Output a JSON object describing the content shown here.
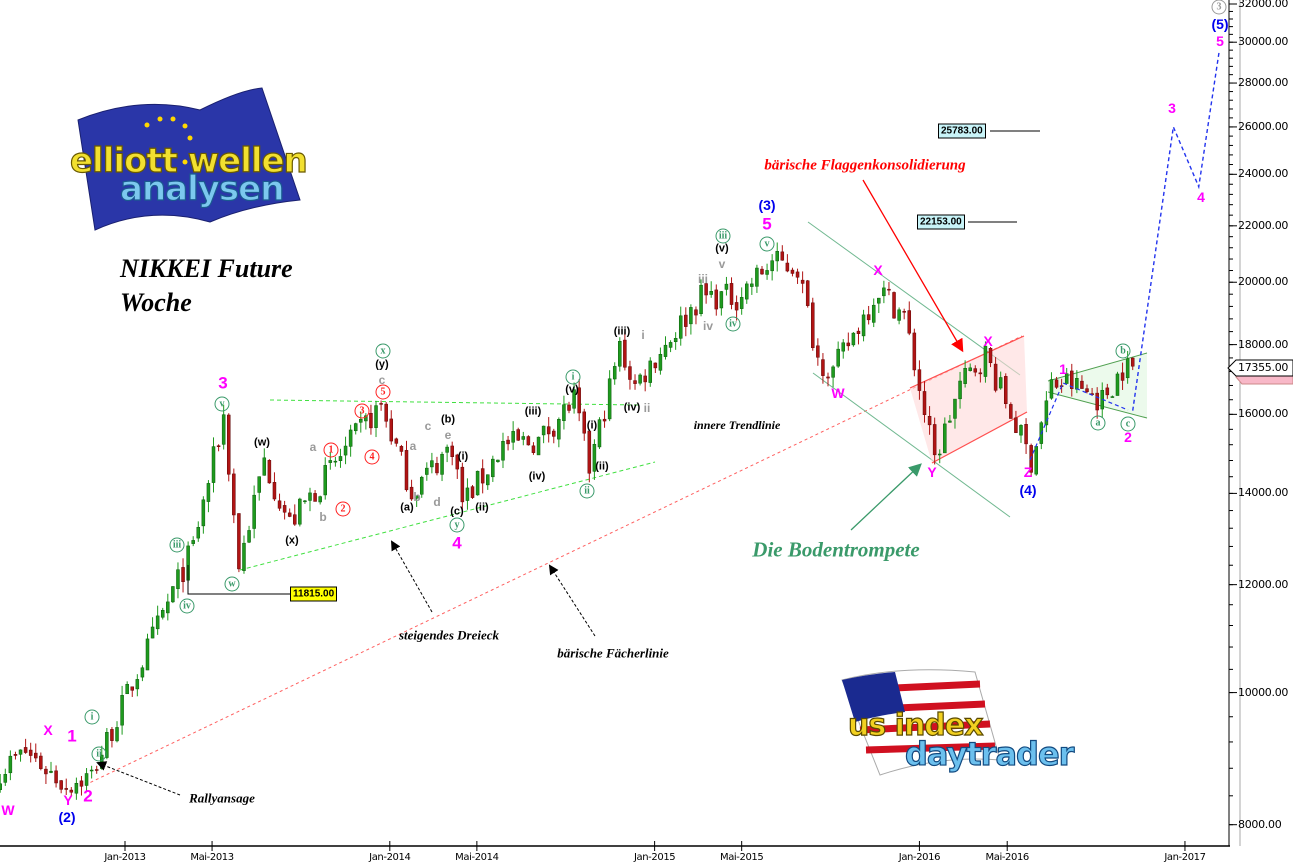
{
  "chart_data": {
    "type": "candlestick",
    "title": "NIKKEI Future",
    "subtitle": "Woche",
    "y_scale": "log",
    "ylim": [
      8000,
      32000
    ],
    "y_ticks": [
      8000,
      10000,
      12000,
      14000,
      16000,
      18000,
      20000,
      22000,
      24000,
      26000,
      28000,
      30000,
      32000
    ],
    "y_tick_labels": [
      "8000.00",
      "10000.00",
      "12000.00",
      "14000.00",
      "16000.00",
      "18000.00",
      "20000.00",
      "22000.00",
      "24000.00",
      "26000.00",
      "28000.00",
      "30000.00",
      "32000.00"
    ],
    "x_tick_labels": [
      {
        "date": "2013-01-01",
        "label": "Jan-2013"
      },
      {
        "date": "2013-05-01",
        "label": "Mai-2013"
      },
      {
        "date": "2014-01-01",
        "label": "Jan-2014"
      },
      {
        "date": "2014-05-01",
        "label": "Mai-2014"
      },
      {
        "date": "2015-01-01",
        "label": "Jan-2015"
      },
      {
        "date": "2015-05-01",
        "label": "Mai-2015"
      },
      {
        "date": "2016-01-01",
        "label": "Jan-2016"
      },
      {
        "date": "2016-05-01",
        "label": "Mai-2016"
      },
      {
        "date": "2017-01-01",
        "label": "Jan-2017"
      }
    ],
    "grid": false,
    "up_color": "#1e9a1e",
    "down_color": "#b01414",
    "weekly_pivots": [
      [
        "2012-07-13",
        8770
      ],
      [
        "2012-08-17",
        9050
      ],
      [
        "2012-10-12",
        8550
      ],
      [
        "2012-11-16",
        8700
      ],
      [
        "2013-04-05",
        12800
      ],
      [
        "2013-05-17",
        15950
      ],
      [
        "2013-06-07",
        12400
      ],
      [
        "2013-07-12",
        14800
      ],
      [
        "2013-08-16",
        13300
      ],
      [
        "2013-11-22",
        15600
      ],
      [
        "2013-12-20",
        16250
      ],
      [
        "2014-01-31",
        14050
      ],
      [
        "2014-03-28",
        15200
      ],
      [
        "2014-04-11",
        13800
      ],
      [
        "2014-05-09",
        14400
      ],
      [
        "2014-06-06",
        15200
      ],
      [
        "2014-07-25",
        15300
      ],
      [
        "2014-09-12",
        16400
      ],
      [
        "2014-10-03",
        14600
      ],
      [
        "2014-11-14",
        17900
      ],
      [
        "2014-12-05",
        16800
      ],
      [
        "2015-03-06",
        19550
      ],
      [
        "2015-04-24",
        19500
      ],
      [
        "2015-06-12",
        20700
      ],
      [
        "2015-07-17",
        20500
      ],
      [
        "2015-08-14",
        17600
      ],
      [
        "2015-09-04",
        17200
      ],
      [
        "2015-11-06",
        19800
      ],
      [
        "2015-12-11",
        18900
      ],
      [
        "2016-01-22",
        14800
      ],
      [
        "2016-02-26",
        16800
      ],
      [
        "2016-04-01",
        17700
      ],
      [
        "2016-06-03",
        14800
      ],
      [
        "2016-07-01",
        16800
      ],
      [
        "2016-07-22",
        16900
      ],
      [
        "2016-09-09",
        16400
      ],
      [
        "2016-10-07",
        17300
      ],
      [
        "2016-10-21",
        17355
      ]
    ],
    "forecast": [
      [
        "2016-10-21",
        16100
      ],
      [
        "2016-12-16",
        26000
      ],
      [
        "2017-01-20",
        23500
      ],
      [
        "2017-02-17",
        29500
      ]
    ],
    "last_price_label": "17355.00",
    "price_levels": [
      {
        "label": "11815.00",
        "value": 11815,
        "color": "#ffff00"
      },
      {
        "label": "25783.00",
        "value": 25783,
        "color": "#c8f4f8"
      },
      {
        "label": "22153.00",
        "value": 22153,
        "color": "#c8f4f8"
      }
    ],
    "annotations": {
      "text": {
        "flag": "bärische Flaggenkonsolidierung",
        "inner": "innere Trendlinie",
        "trumpet": "Die Bodentrompete",
        "triangle": "steigendes Dreieck",
        "fan": "bärische Fächerlinie",
        "rally": "Rallyansage"
      },
      "wave_labels": [
        "W",
        "X",
        "1",
        "Y",
        "2",
        "3",
        "4",
        "5",
        "X",
        "W",
        "X",
        "Y",
        "Z",
        "1",
        "2",
        "3",
        "4",
        "5"
      ],
      "blue_labels": [
        "(2)",
        "(3)",
        "(4)",
        "(5)"
      ],
      "green_circled": [
        "i",
        "ii",
        "iii",
        "iv",
        "v",
        "w",
        "x",
        "y",
        "i",
        "ii",
        "iii",
        "iv",
        "v",
        "a",
        "b",
        "c"
      ],
      "black_labels": [
        "(w)",
        "(x)",
        "(y)",
        "(a)",
        "(b)",
        "(i)",
        "(c)",
        "(ii)",
        "(iii)",
        "(iv)",
        "(v)",
        "(i)",
        "(ii)",
        "(iii)",
        "(iv)",
        "(v)"
      ],
      "gray_labels": [
        "a",
        "b",
        "c",
        "a",
        "b",
        "c",
        "d",
        "e",
        "i",
        "ii",
        "iii",
        "iv",
        "v"
      ],
      "red_circled": [
        "1",
        "2",
        "3",
        "4",
        "5"
      ],
      "gray_circled": "3"
    },
    "colors": {
      "magenta": "#ff00ff",
      "blue": "#0000ee",
      "wave_green": "#3a9a6a",
      "flag_red": "#ff0000",
      "forecast": "#2233ee"
    }
  },
  "logos": {
    "top_left": "elliott wellen analysen",
    "bottom_right": "us index daytrader"
  }
}
